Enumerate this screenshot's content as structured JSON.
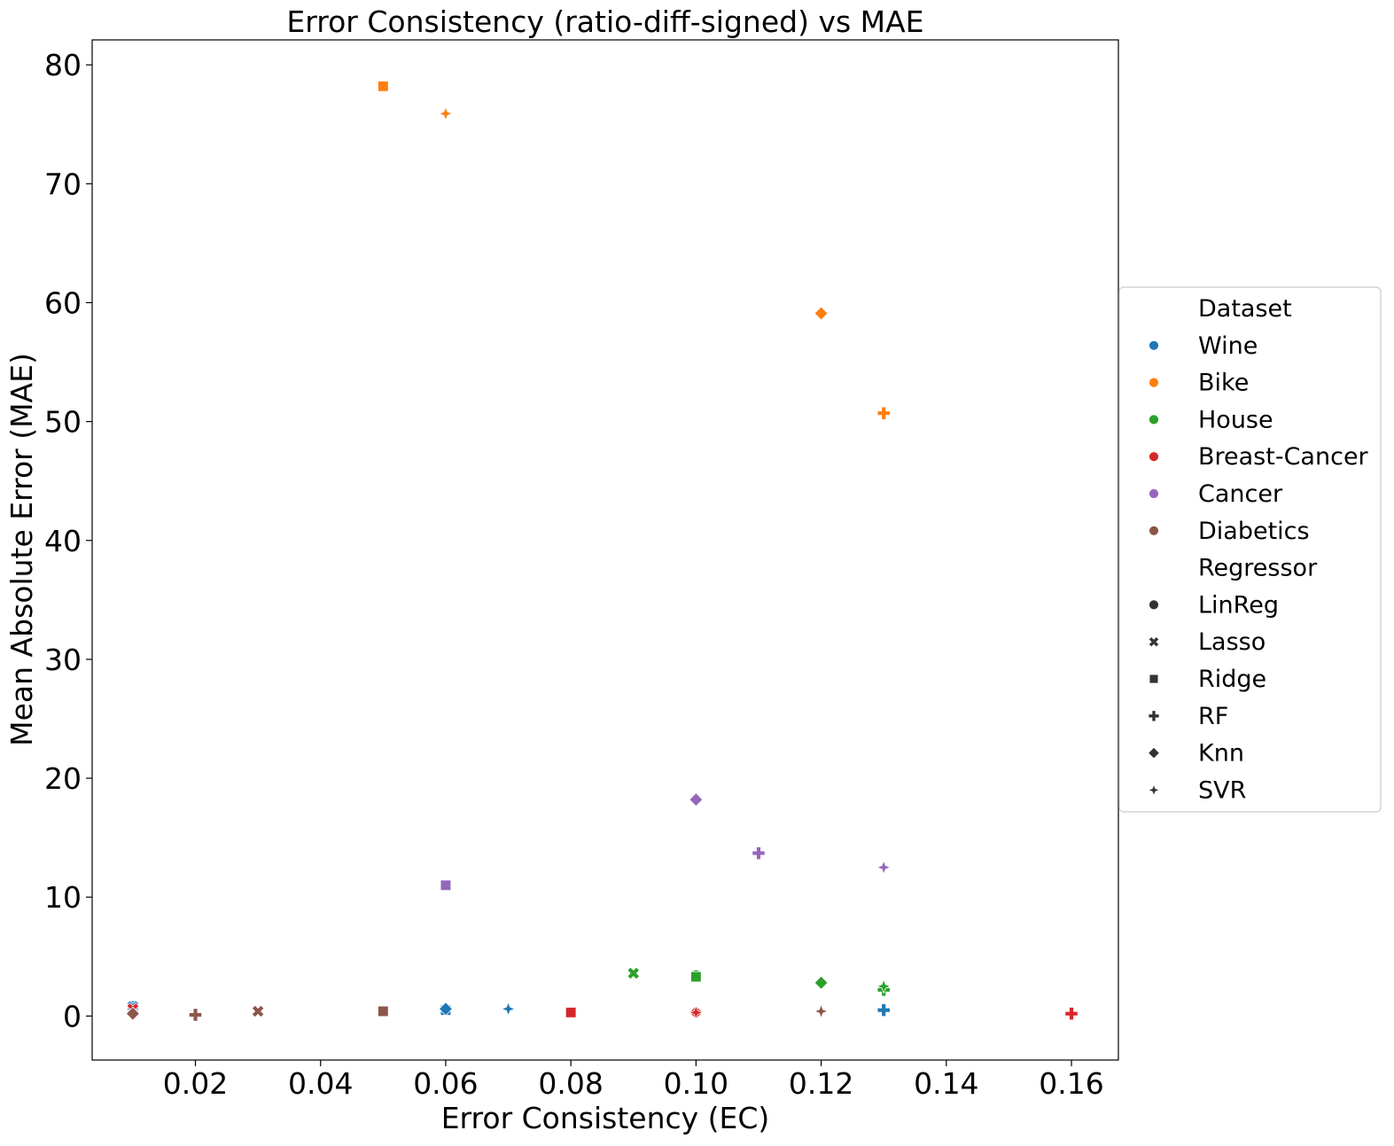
{
  "chart_data": {
    "type": "scatter",
    "title": "Error Consistency (ratio-diff-signed) vs MAE",
    "xlabel": "Error Consistency (EC)",
    "ylabel": "Mean Absolute Error (MAE)",
    "xlim": [
      0.0035,
      0.1675
    ],
    "ylim": [
      -3.7,
      82.1
    ],
    "x_ticks": [
      0.02,
      0.04,
      0.06,
      0.08,
      0.1,
      0.12,
      0.14,
      0.16
    ],
    "x_tick_labels": [
      "0.02",
      "0.04",
      "0.06",
      "0.08",
      "0.10",
      "0.12",
      "0.14",
      "0.16"
    ],
    "y_ticks": [
      0,
      10,
      20,
      30,
      40,
      50,
      60,
      70,
      80
    ],
    "y_tick_labels": [
      "0",
      "10",
      "20",
      "30",
      "40",
      "50",
      "60",
      "70",
      "80"
    ],
    "grid": false,
    "legend": {
      "placement": "right-outside",
      "dataset_title": "Dataset",
      "regressor_title": "Regressor",
      "datasets": [
        {
          "name": "Wine",
          "color": "#1f77b4"
        },
        {
          "name": "Bike",
          "color": "#ff7f0e"
        },
        {
          "name": "House",
          "color": "#2ca02c"
        },
        {
          "name": "Breast-Cancer",
          "color": "#d62728"
        },
        {
          "name": "Cancer",
          "color": "#9467bd"
        },
        {
          "name": "Diabetics",
          "color": "#8c564b"
        }
      ],
      "regressors": [
        {
          "name": "LinReg",
          "marker": "circle"
        },
        {
          "name": "Lasso",
          "marker": "x"
        },
        {
          "name": "Ridge",
          "marker": "square"
        },
        {
          "name": "RF",
          "marker": "plus"
        },
        {
          "name": "Knn",
          "marker": "diamond"
        },
        {
          "name": "SVR",
          "marker": "star4"
        }
      ]
    },
    "points": [
      {
        "dataset": "Wine",
        "regressor": "LinReg",
        "x": 0.01,
        "y": 0.8
      },
      {
        "dataset": "Wine",
        "regressor": "Lasso",
        "x": 0.01,
        "y": 0.8
      },
      {
        "dataset": "Wine",
        "regressor": "Ridge",
        "x": 0.06,
        "y": 0.5
      },
      {
        "dataset": "Wine",
        "regressor": "RF",
        "x": 0.13,
        "y": 0.5
      },
      {
        "dataset": "Wine",
        "regressor": "Knn",
        "x": 0.06,
        "y": 0.6
      },
      {
        "dataset": "Wine",
        "regressor": "SVR",
        "x": 0.07,
        "y": 0.6
      },
      {
        "dataset": "Bike",
        "regressor": "LinReg",
        "x": 0.05,
        "y": 78.2
      },
      {
        "dataset": "Bike",
        "regressor": "Lasso",
        "x": 0.05,
        "y": 78.2
      },
      {
        "dataset": "Bike",
        "regressor": "Ridge",
        "x": 0.05,
        "y": 78.2
      },
      {
        "dataset": "Bike",
        "regressor": "RF",
        "x": 0.13,
        "y": 50.7
      },
      {
        "dataset": "Bike",
        "regressor": "Knn",
        "x": 0.12,
        "y": 59.1
      },
      {
        "dataset": "Bike",
        "regressor": "SVR",
        "x": 0.06,
        "y": 75.9
      },
      {
        "dataset": "House",
        "regressor": "LinReg",
        "x": 0.1,
        "y": 3.4
      },
      {
        "dataset": "House",
        "regressor": "Lasso",
        "x": 0.09,
        "y": 3.6
      },
      {
        "dataset": "House",
        "regressor": "Ridge",
        "x": 0.1,
        "y": 3.3
      },
      {
        "dataset": "House",
        "regressor": "RF",
        "x": 0.13,
        "y": 2.2
      },
      {
        "dataset": "House",
        "regressor": "Knn",
        "x": 0.12,
        "y": 2.8
      },
      {
        "dataset": "House",
        "regressor": "SVR",
        "x": 0.13,
        "y": 2.5
      },
      {
        "dataset": "Breast-Cancer",
        "regressor": "LinReg",
        "x": 0.08,
        "y": 0.3
      },
      {
        "dataset": "Breast-Cancer",
        "regressor": "Lasso",
        "x": 0.01,
        "y": 0.6
      },
      {
        "dataset": "Breast-Cancer",
        "regressor": "Ridge",
        "x": 0.08,
        "y": 0.3
      },
      {
        "dataset": "Breast-Cancer",
        "regressor": "RF",
        "x": 0.16,
        "y": 0.2
      },
      {
        "dataset": "Breast-Cancer",
        "regressor": "Knn",
        "x": 0.1,
        "y": 0.3
      },
      {
        "dataset": "Breast-Cancer",
        "regressor": "SVR",
        "x": 0.1,
        "y": 0.3
      },
      {
        "dataset": "Cancer",
        "regressor": "LinReg",
        "x": 0.06,
        "y": 11.0
      },
      {
        "dataset": "Cancer",
        "regressor": "Lasso",
        "x": 0.06,
        "y": 11.0
      },
      {
        "dataset": "Cancer",
        "regressor": "Ridge",
        "x": 0.06,
        "y": 11.0
      },
      {
        "dataset": "Cancer",
        "regressor": "RF",
        "x": 0.11,
        "y": 13.7
      },
      {
        "dataset": "Cancer",
        "regressor": "Knn",
        "x": 0.1,
        "y": 18.2
      },
      {
        "dataset": "Cancer",
        "regressor": "SVR",
        "x": 0.13,
        "y": 12.5
      },
      {
        "dataset": "Diabetics",
        "regressor": "LinReg",
        "x": 0.05,
        "y": 0.4
      },
      {
        "dataset": "Diabetics",
        "regressor": "Lasso",
        "x": 0.03,
        "y": 0.4
      },
      {
        "dataset": "Diabetics",
        "regressor": "Ridge",
        "x": 0.05,
        "y": 0.4
      },
      {
        "dataset": "Diabetics",
        "regressor": "RF",
        "x": 0.02,
        "y": 0.1
      },
      {
        "dataset": "Diabetics",
        "regressor": "Knn",
        "x": 0.01,
        "y": 0.2
      },
      {
        "dataset": "Diabetics",
        "regressor": "SVR",
        "x": 0.12,
        "y": 0.4
      }
    ]
  }
}
